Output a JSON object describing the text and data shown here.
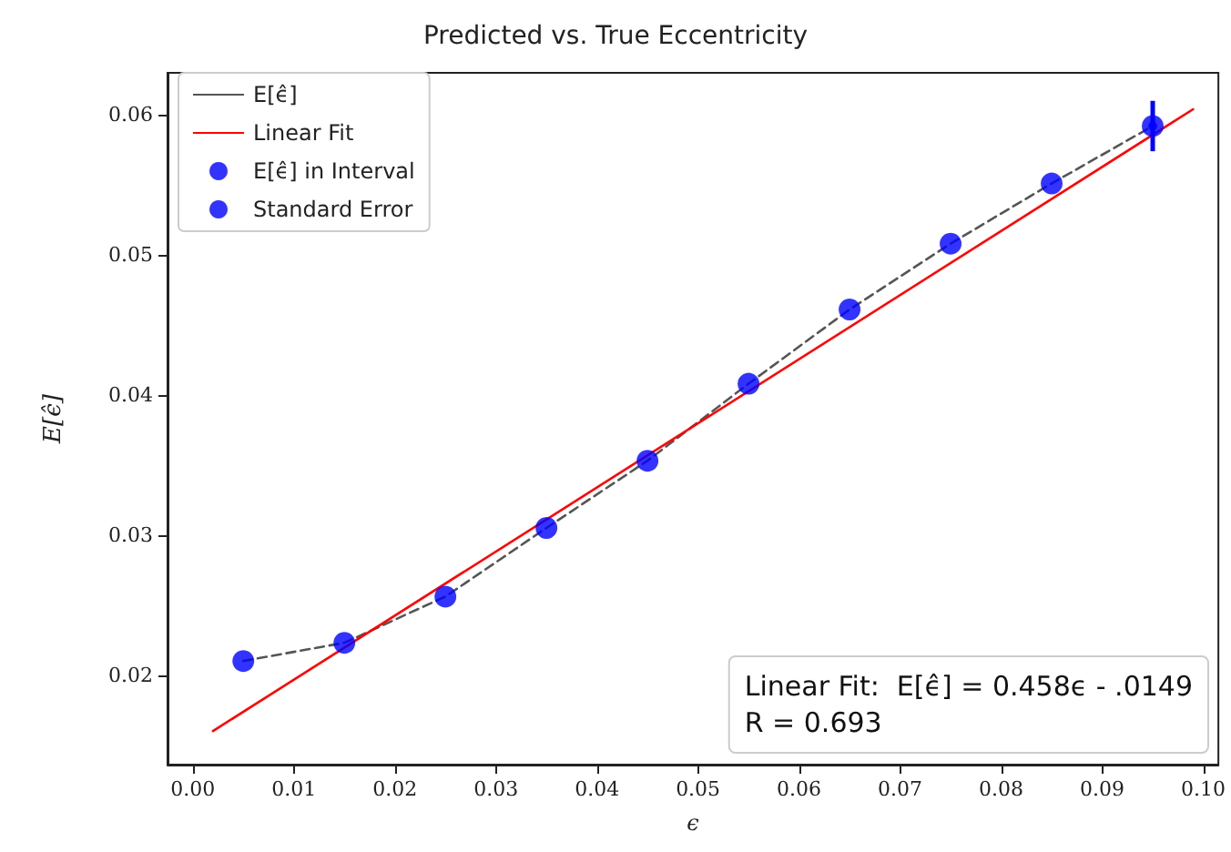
{
  "chart_data": {
    "type": "line",
    "title": "Predicted vs. True Eccentricity",
    "xlabel": "ϵ",
    "ylabel": "E[ϵ̂]",
    "annotations": [
      "Linear Fit:  E[ϵ̂] = 0.458ϵ - .0149",
      "R = 0.693"
    ],
    "series": [
      {
        "name": "E[ϵ̂]",
        "color": "#555555",
        "line_style": "dashed",
        "marker": "none",
        "x": [
          0.005,
          0.015,
          0.025,
          0.035,
          0.045,
          0.055,
          0.065,
          0.075,
          0.085,
          0.095
        ],
        "values": [
          0.021,
          0.0223,
          0.0256,
          0.0305,
          0.0353,
          0.0408,
          0.0461,
          0.0508,
          0.0551,
          0.0592
        ]
      },
      {
        "name": "Linear Fit",
        "color": "#ff0000",
        "line_style": "solid",
        "marker": "none",
        "x": [
          0.002,
          0.099
        ],
        "values": [
          0.016,
          0.0604
        ]
      },
      {
        "name": "E[ϵ̂] in Interval",
        "type": "scatter",
        "color": "#0000ff",
        "marker": "circle",
        "x": [
          0.005,
          0.015,
          0.025,
          0.035,
          0.045,
          0.055,
          0.065,
          0.075,
          0.085,
          0.095
        ],
        "values": [
          0.021,
          0.0223,
          0.0256,
          0.0305,
          0.0353,
          0.0408,
          0.0461,
          0.0508,
          0.0551,
          0.0592
        ]
      },
      {
        "name": "Standard Error",
        "type": "scatter",
        "color": "#0000ff",
        "marker": "circle",
        "x": [
          0.095
        ],
        "values": [
          0.0592
        ],
        "errors": [
          [
            0.0574,
            0.061
          ]
        ]
      }
    ],
    "xlim": [
      -0.0025,
      0.1015
    ],
    "ylim": [
      0.0136,
      0.063
    ],
    "xticks": [
      {
        "value": 0,
        "label": "0.00"
      },
      0.01,
      0.02,
      0.03,
      0.04,
      0.05,
      0.06,
      0.07,
      0.08,
      0.09,
      {
        "value": 0.1,
        "label": "0.10"
      }
    ],
    "yticks": [
      0.02,
      0.03,
      0.04,
      0.05,
      0.06
    ],
    "grid": false,
    "legend": "top left"
  }
}
